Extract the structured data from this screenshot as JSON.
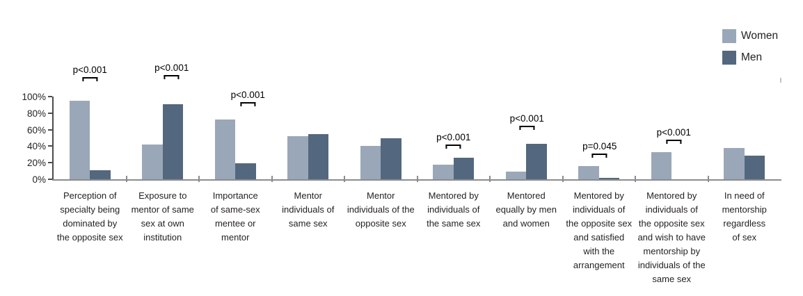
{
  "chart_data": {
    "type": "bar",
    "title": "",
    "xlabel": "",
    "ylabel": "",
    "ylim": [
      0,
      100
    ],
    "yticks": [
      "0%",
      "20%",
      "40%",
      "60%",
      "80%",
      "100%"
    ],
    "grid": false,
    "legend_position": "top-right",
    "categories": [
      "Perception of specialty being dominated by the opposite sex",
      "Exposure to mentor of same sex at own institution",
      "Importance of same-sex mentee or mentor",
      "Mentor individuals of same sex",
      "Mentor individuals of the opposite sex",
      "Mentored by individuals of the same sex",
      "Mentored equally by men and women",
      "Mentored by individuals of the opposite sex and satisfied with the arrangement",
      "Mentored by individuals of the opposite sex and wish to have mentorship by individuals of the same sex",
      "In need of mentorship regardless of sex"
    ],
    "category_lines": [
      [
        "Perception of",
        "specialty being",
        "dominated by",
        "the opposite sex"
      ],
      [
        "Exposure to",
        "mentor of same",
        "sex at own",
        "institution"
      ],
      [
        "Importance",
        "of same-sex",
        "mentee or",
        "mentor"
      ],
      [
        "Mentor",
        "individuals of",
        "same sex"
      ],
      [
        "Mentor",
        "individuals of the",
        "opposite sex"
      ],
      [
        "Mentored by",
        "individuals of",
        "the same sex"
      ],
      [
        "Mentored",
        "equally by men",
        "and women"
      ],
      [
        "Mentored by",
        "individuals of",
        "the opposite sex",
        "and satisfied",
        "with the",
        "arrangement"
      ],
      [
        "Mentored by",
        "individuals of",
        "the opposite sex",
        "and wish to have",
        "mentorship by",
        "individuals of the",
        "same sex"
      ],
      [
        "In need of",
        "mentorship",
        "regardless",
        "of sex"
      ]
    ],
    "series": [
      {
        "name": "Women",
        "color": "#9aa7b8",
        "values": [
          95,
          42,
          72,
          52,
          40,
          18,
          9,
          16,
          33,
          38
        ]
      },
      {
        "name": "Men",
        "color": "#53687e",
        "values": [
          11,
          91,
          19,
          55,
          50,
          26,
          43,
          2,
          0,
          29
        ]
      }
    ],
    "annotations": [
      {
        "group": 0,
        "label": "p<0.001",
        "dx": 0,
        "height": 141
      },
      {
        "group": 1,
        "label": "p<0.001",
        "dx": 13,
        "height": 144
      },
      {
        "group": 2,
        "label": "p<0.001",
        "dx": 18,
        "height": 105
      },
      {
        "group": 5,
        "label": "p<0.001",
        "dx": 0,
        "height": 44
      },
      {
        "group": 6,
        "label": "p<0.001",
        "dx": 1,
        "height": 71
      },
      {
        "group": 7,
        "label": "p=0.045",
        "dx": 1,
        "height": 31
      },
      {
        "group": 8,
        "label": "p<0.001",
        "dx": 3,
        "height": 51
      }
    ],
    "colors": {
      "axis_line": "#4a4b4d",
      "baseline": "#8a8c8f",
      "text": "#231f20",
      "annotation_text": "#000000"
    }
  }
}
